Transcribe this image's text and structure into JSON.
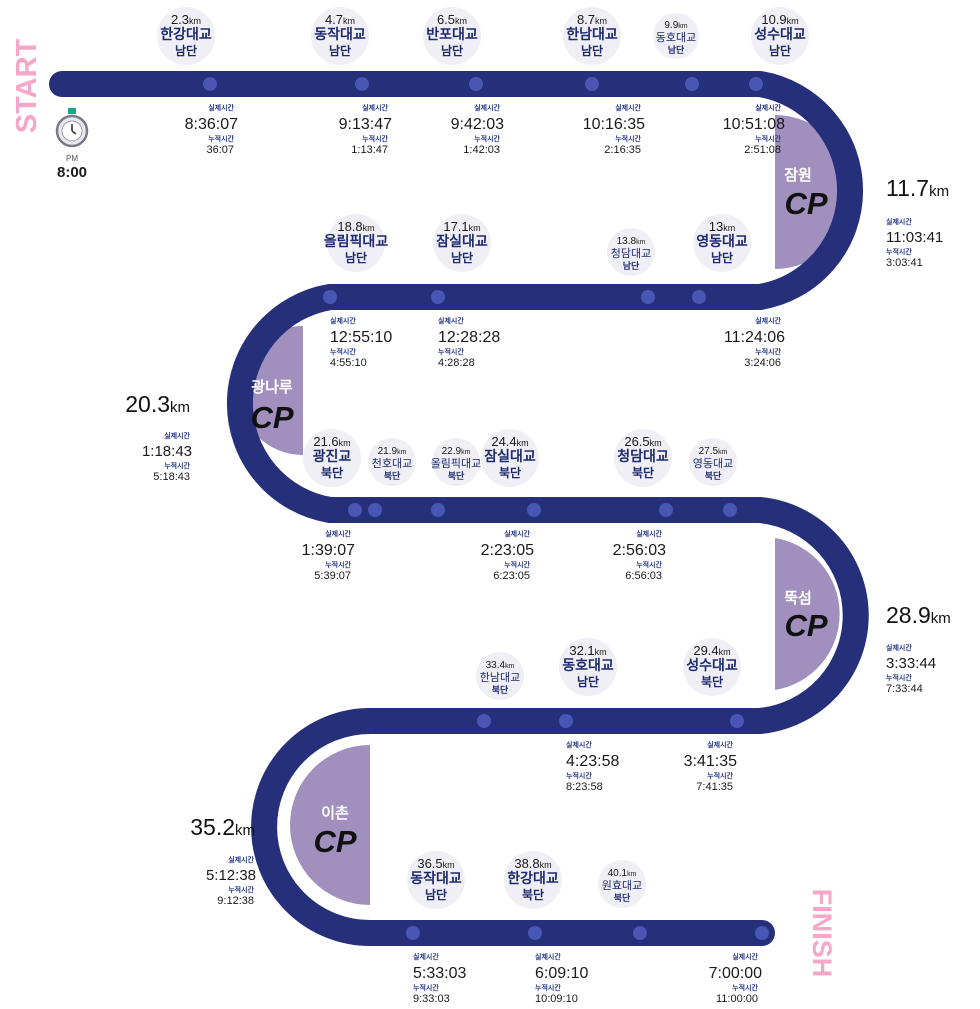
{
  "colors": {
    "track": "#262f7a",
    "dot": "#4a56b4",
    "cp_fill": "#a18fbe",
    "start_finish": "#f4a7c8",
    "text": "#1a1a1a",
    "label_blue": "#2a3a8a"
  },
  "start": {
    "label": "START",
    "pm": "PM",
    "time": "8:00",
    "icon": "stopwatch-icon"
  },
  "finish": {
    "label": "FINISH"
  },
  "labels": {
    "actual": "실제시간",
    "cumulative": "누적시간",
    "unit": "km"
  },
  "checkpoints": [
    {
      "name": "잠원",
      "cp": "CP",
      "dist": "11.7",
      "actual": "11:03:41",
      "cumulative": "3:03:41"
    },
    {
      "name": "광나루",
      "cp": "CP",
      "dist": "20.3",
      "actual": "1:18:43",
      "cumulative": "5:18:43"
    },
    {
      "name": "뚝섬",
      "cp": "CP",
      "dist": "28.9",
      "actual": "3:33:44",
      "cumulative": "7:33:44"
    },
    {
      "name": "이촌",
      "cp": "CP",
      "dist": "35.2",
      "actual": "5:12:38",
      "cumulative": "9:12:38"
    }
  ],
  "points": [
    {
      "dist": "2.3",
      "l1": "한강대교",
      "l2": "남단",
      "actual": "8:36:07",
      "cumulative": "36:07"
    },
    {
      "dist": "4.7",
      "l1": "동작대교",
      "l2": "남단",
      "actual": "9:13:47",
      "cumulative": "1:13:47"
    },
    {
      "dist": "6.5",
      "l1": "반포대교",
      "l2": "남단",
      "actual": "9:42:03",
      "cumulative": "1:42:03"
    },
    {
      "dist": "8.7",
      "l1": "한남대교",
      "l2": "남단",
      "actual": "10:16:35",
      "cumulative": "2:16:35"
    },
    {
      "dist": "9.9",
      "l1": "동호대교",
      "l2": "남단",
      "actual": "",
      "cumulative": ""
    },
    {
      "dist": "10.9",
      "l1": "성수대교",
      "l2": "남단",
      "actual": "10:51:08",
      "cumulative": "2:51:08"
    },
    {
      "dist": "13",
      "l1": "영동대교",
      "l2": "남단",
      "actual": "11:24:06",
      "cumulative": "3:24:06"
    },
    {
      "dist": "13.8",
      "l1": "청담대교",
      "l2": "남단",
      "actual": "",
      "cumulative": ""
    },
    {
      "dist": "17.1",
      "l1": "잠실대교",
      "l2": "남단",
      "actual": "12:28:28",
      "cumulative": "4:28:28"
    },
    {
      "dist": "18.8",
      "l1": "올림픽대교",
      "l2": "남단",
      "actual": "12:55:10",
      "cumulative": "4:55:10"
    },
    {
      "dist": "21.6",
      "l1": "광진교",
      "l2": "북단",
      "actual": "1:39:07",
      "cumulative": "5:39:07"
    },
    {
      "dist": "21.9",
      "l1": "천호대교",
      "l2": "북단",
      "actual": "",
      "cumulative": ""
    },
    {
      "dist": "22.9",
      "l1": "올림픽대교",
      "l2": "북단",
      "actual": "",
      "cumulative": ""
    },
    {
      "dist": "24.4",
      "l1": "잠실대교",
      "l2": "북단",
      "actual": "2:23:05",
      "cumulative": "6:23:05"
    },
    {
      "dist": "26.5",
      "l1": "청담대교",
      "l2": "북단",
      "actual": "2:56:03",
      "cumulative": "6:56:03"
    },
    {
      "dist": "27.5",
      "l1": "영동대교",
      "l2": "북단",
      "actual": "",
      "cumulative": ""
    },
    {
      "dist": "29.4",
      "l1": "성수대교",
      "l2": "북단",
      "actual": "3:41:35",
      "cumulative": "7:41:35"
    },
    {
      "dist": "32.1",
      "l1": "동호대교",
      "l2": "남단",
      "actual": "4:23:58",
      "cumulative": "8:23:58"
    },
    {
      "dist": "33.4",
      "l1": "한남대교",
      "l2": "북단",
      "actual": "",
      "cumulative": ""
    },
    {
      "dist": "36.5",
      "l1": "동작대교",
      "l2": "남단",
      "actual": "5:33:03",
      "cumulative": "9:33:03"
    },
    {
      "dist": "38.8",
      "l1": "한강대교",
      "l2": "북단",
      "actual": "6:09:10",
      "cumulative": "10:09:10"
    },
    {
      "dist": "40.1",
      "l1": "원효대교",
      "l2": "북단",
      "actual": "",
      "cumulative": ""
    },
    {
      "dist": "",
      "l1": "",
      "l2": "",
      "actual": "7:00:00",
      "cumulative": "11:00:00"
    }
  ]
}
